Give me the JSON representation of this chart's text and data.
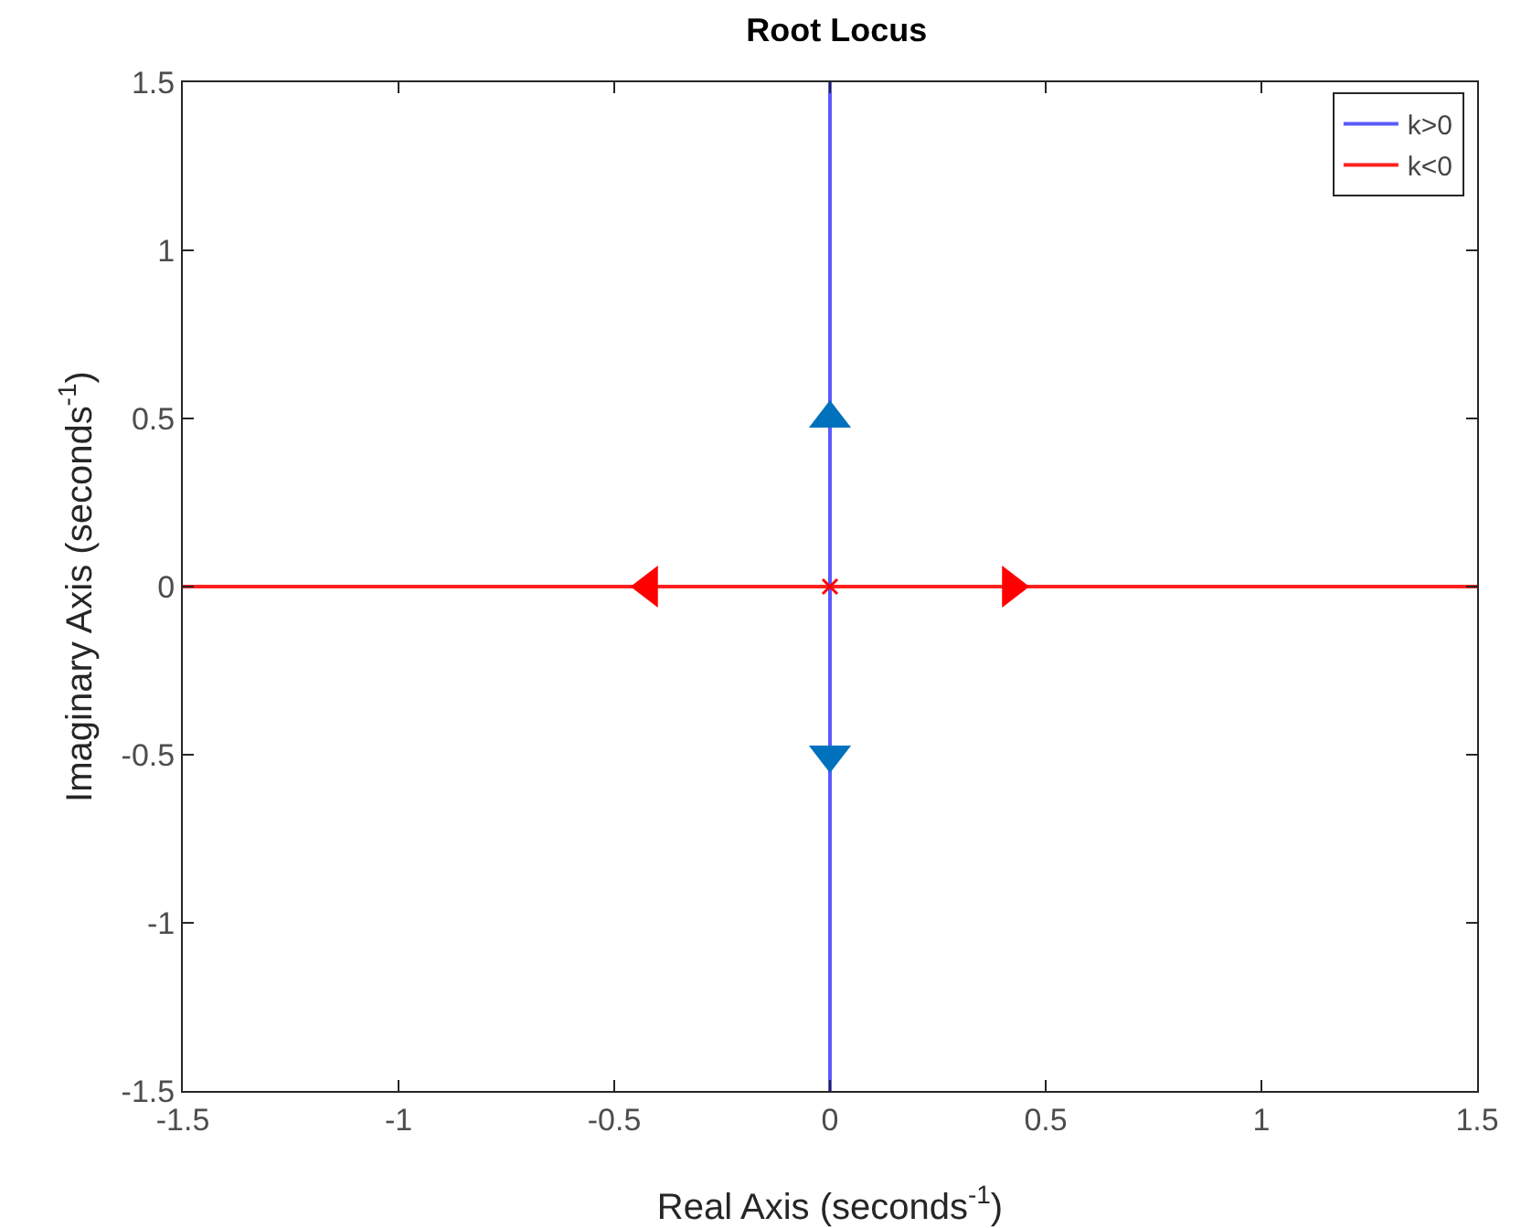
{
  "chart_data": {
    "type": "line",
    "title": "Root Locus",
    "xlabel": "Real Axis (seconds$^{-1}$)",
    "ylabel": "Imaginary Axis (seconds$^{-1}$)",
    "xlim": [
      -1.5,
      1.5
    ],
    "ylim": [
      -1.5,
      1.5
    ],
    "xticks": [
      -1.5,
      -1,
      -0.5,
      0,
      0.5,
      1,
      1.5
    ],
    "yticks": [
      -1.5,
      -1,
      -0.5,
      0,
      0.5,
      1,
      1.5
    ],
    "grid": false,
    "legend": "top right",
    "marker": "none",
    "line_style": "solid",
    "series": [
      {
        "name": "k>0",
        "color": "#5a5aff",
        "x": [
          0,
          0
        ],
        "values": [
          -1.5,
          1.5
        ]
      },
      {
        "name": "k<0",
        "color": "#ff2020",
        "x": [
          -1.5,
          1.5
        ],
        "values": [
          0,
          0
        ]
      },
      {
        "type": "scatter",
        "marker": "triangle",
        "color": "#0072bd",
        "x": [
          0,
          0
        ],
        "values": [
          0.5,
          -0.5
        ]
      },
      {
        "type": "scatter",
        "marker": "triangle",
        "color": "#ff0000",
        "x": [
          -0.42,
          0.42
        ],
        "values": [
          0,
          0
        ]
      },
      {
        "type": "scatter",
        "marker": "cross",
        "color": "#ff0000",
        "x": [
          0
        ],
        "values": [
          0
        ]
      }
    ]
  }
}
